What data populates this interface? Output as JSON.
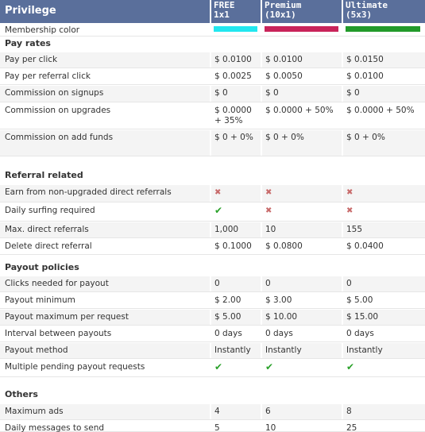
{
  "header": {
    "privilege": "Privilege",
    "col1": [
      "FREE",
      "1x1"
    ],
    "col2": [
      "Premium",
      "(10x1)"
    ],
    "col3": [
      "Ultimate",
      "(5x3)"
    ]
  },
  "membership": {
    "label": "Membership color",
    "colors": [
      "#22e7ef",
      "#c9245a",
      "#229a2a"
    ]
  },
  "sections": {
    "pay_rates": "Pay rates",
    "referral": "Referral related",
    "payout": "Payout policies",
    "others": "Others"
  },
  "rows": {
    "ppc": {
      "label": "Pay per click",
      "v": [
        "$ 0.0100",
        "$ 0.0100",
        "$ 0.0150"
      ]
    },
    "pprc": {
      "label": "Pay per referral click",
      "v": [
        "$ 0.0025",
        "$ 0.0050",
        "$ 0.0100"
      ]
    },
    "signups": {
      "label": "Commission on signups",
      "v": [
        "$ 0",
        "$ 0",
        "$ 0"
      ]
    },
    "upgrades": {
      "label": "Commission on upgrades",
      "v": [
        "$ 0.0000 + 35%",
        "$ 0.0000 + 50%",
        "$ 0.0000 + 50%"
      ]
    },
    "addfunds": {
      "label": "Commission on add funds",
      "v": [
        "$ 0 + 0%",
        "$ 0 + 0%",
        "$ 0 + 0%"
      ]
    },
    "earn": {
      "label": "Earn from non-upgraded direct referrals",
      "v": [
        "✖",
        "✖",
        "✖"
      ]
    },
    "surf": {
      "label": "Daily surfing required",
      "v": [
        "✔",
        "✖",
        "✖"
      ]
    },
    "maxref": {
      "label": "Max. direct referrals",
      "v": [
        "1,000",
        "10",
        "155"
      ]
    },
    "delref": {
      "label": "Delete direct referral",
      "v": [
        "$ 0.1000",
        "$ 0.0800",
        "$ 0.0400"
      ]
    },
    "clicks": {
      "label": "Clicks needed for payout",
      "v": [
        "0",
        "0",
        "0"
      ]
    },
    "paymin": {
      "label": "Payout minimum",
      "v": [
        "$ 2.00",
        "$ 3.00",
        "$ 5.00"
      ]
    },
    "paymax": {
      "label": "Payout maximum per request",
      "v": [
        "$ 5.00",
        "$ 10.00",
        "$ 15.00"
      ]
    },
    "interval": {
      "label": "Interval between payouts",
      "v": [
        "0 days",
        "0 days",
        "0 days"
      ]
    },
    "method": {
      "label": "Payout method",
      "v": [
        "Instantly",
        "Instantly",
        "Instantly"
      ]
    },
    "pending": {
      "label": "Multiple pending payout requests",
      "v": [
        "✔",
        "✔",
        "✔"
      ]
    },
    "maxads": {
      "label": "Maximum ads",
      "v": [
        "4",
        "6",
        "8"
      ]
    },
    "msgs": {
      "label": "Daily messages to send",
      "v": [
        "5",
        "10",
        "25"
      ]
    }
  }
}
